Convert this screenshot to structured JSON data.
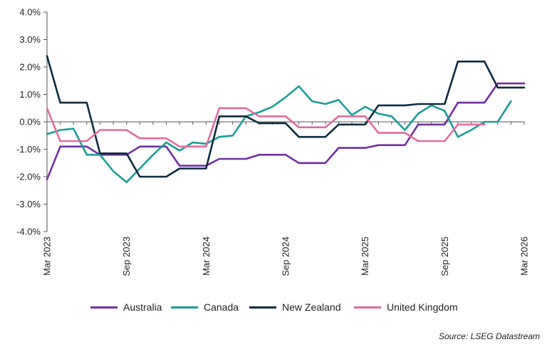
{
  "chart_data": {
    "type": "line",
    "y_ticks": [
      "4.0%",
      "3.0%",
      "2.0%",
      "1.0%",
      "0.0%",
      "-1.0%",
      "-2.0%",
      "-3.0%",
      "-4.0%"
    ],
    "x_ticks": [
      "Mar 2023",
      "Sep 2023",
      "Mar 2024",
      "Sep 2024",
      "Mar 2025",
      "Sep 2025",
      "Mar 2026"
    ],
    "ylim": [
      -4.0,
      4.0
    ],
    "xlim_months": [
      "2023-03",
      "2026-03"
    ],
    "grid": false,
    "legend_position": "bottom",
    "series": [
      {
        "name": "Australia",
        "color": "#7030A0",
        "x": [
          "2023-03",
          "2023-04",
          "2023-05",
          "2023-06",
          "2023-07",
          "2023-08",
          "2023-09",
          "2023-10",
          "2023-11",
          "2023-12",
          "2024-01",
          "2024-02",
          "2024-03",
          "2024-04",
          "2024-05",
          "2024-06",
          "2024-07",
          "2024-08",
          "2024-09",
          "2024-10",
          "2024-11",
          "2024-12",
          "2025-01",
          "2025-02",
          "2025-03",
          "2025-04",
          "2025-05",
          "2025-06",
          "2025-07",
          "2025-08",
          "2025-09",
          "2025-10",
          "2025-11",
          "2025-12",
          "2026-01",
          "2026-02",
          "2026-03"
        ],
        "values": [
          -2.1,
          -0.9,
          -0.9,
          -0.9,
          -1.2,
          -1.2,
          -1.2,
          -0.9,
          -0.9,
          -0.9,
          -1.6,
          -1.6,
          -1.6,
          -1.35,
          -1.35,
          -1.35,
          -1.2,
          -1.2,
          -1.2,
          -1.5,
          -1.5,
          -1.5,
          -0.95,
          -0.95,
          -0.95,
          -0.85,
          -0.85,
          -0.85,
          -0.1,
          -0.1,
          -0.1,
          0.7,
          0.7,
          0.7,
          1.4,
          1.4,
          1.4
        ]
      },
      {
        "name": "Canada",
        "color": "#1A9E96",
        "x": [
          "2023-03",
          "2023-04",
          "2023-05",
          "2023-06",
          "2023-07",
          "2023-08",
          "2023-09",
          "2023-10",
          "2023-11",
          "2023-12",
          "2024-01",
          "2024-02",
          "2024-03",
          "2024-04",
          "2024-05",
          "2024-06",
          "2024-07",
          "2024-08",
          "2024-09",
          "2024-10",
          "2024-11",
          "2024-12",
          "2025-01",
          "2025-02",
          "2025-03",
          "2025-04",
          "2025-05",
          "2025-06",
          "2025-07",
          "2025-08",
          "2025-09",
          "2025-10",
          "2025-11",
          "2025-12",
          "2026-01",
          "2026-02"
        ],
        "values": [
          -0.45,
          -0.3,
          -0.25,
          -1.2,
          -1.2,
          -1.8,
          -2.2,
          -1.7,
          -1.2,
          -0.75,
          -1.05,
          -0.75,
          -0.8,
          -0.55,
          -0.5,
          0.2,
          0.35,
          0.55,
          0.9,
          1.3,
          0.75,
          0.65,
          0.8,
          0.25,
          0.55,
          0.3,
          0.2,
          -0.3,
          0.3,
          0.6,
          0.4,
          -0.55,
          -0.3,
          0.0,
          0.0,
          0.75
        ]
      },
      {
        "name": "New Zealand",
        "color": "#0F2B3D",
        "x": [
          "2023-03",
          "2023-04",
          "2023-05",
          "2023-06",
          "2023-07",
          "2023-08",
          "2023-09",
          "2023-10",
          "2023-11",
          "2023-12",
          "2024-01",
          "2024-02",
          "2024-03",
          "2024-04",
          "2024-05",
          "2024-06",
          "2024-07",
          "2024-08",
          "2024-09",
          "2024-10",
          "2024-11",
          "2024-12",
          "2025-01",
          "2025-02",
          "2025-03",
          "2025-04",
          "2025-05",
          "2025-06",
          "2025-07",
          "2025-08",
          "2025-09",
          "2025-10",
          "2025-11",
          "2025-12",
          "2026-01",
          "2026-02",
          "2026-03"
        ],
        "values": [
          2.4,
          0.7,
          0.7,
          0.7,
          -1.15,
          -1.15,
          -1.15,
          -2.0,
          -2.0,
          -2.0,
          -1.7,
          -1.7,
          -1.7,
          0.2,
          0.2,
          0.2,
          -0.05,
          -0.05,
          -0.05,
          -0.55,
          -0.55,
          -0.55,
          -0.1,
          -0.1,
          -0.1,
          0.6,
          0.6,
          0.6,
          0.65,
          0.65,
          0.65,
          2.2,
          2.2,
          2.2,
          1.25,
          1.25,
          1.25
        ]
      },
      {
        "name": "United Kingdom",
        "color": "#E06C9F",
        "x": [
          "2023-03",
          "2023-04",
          "2023-05",
          "2023-06",
          "2023-07",
          "2023-08",
          "2023-09",
          "2023-10",
          "2023-11",
          "2023-12",
          "2024-01",
          "2024-02",
          "2024-03",
          "2024-04",
          "2024-05",
          "2024-06",
          "2024-07",
          "2024-08",
          "2024-09",
          "2024-10",
          "2024-11",
          "2024-12",
          "2025-01",
          "2025-02",
          "2025-03",
          "2025-04",
          "2025-05",
          "2025-06",
          "2025-07",
          "2025-08",
          "2025-09",
          "2025-10",
          "2025-11",
          "2025-12"
        ],
        "values": [
          0.5,
          -0.7,
          -0.7,
          -0.7,
          -0.3,
          -0.3,
          -0.3,
          -0.6,
          -0.6,
          -0.6,
          -0.9,
          -0.9,
          -0.9,
          0.5,
          0.5,
          0.5,
          0.2,
          0.2,
          0.2,
          -0.2,
          -0.2,
          -0.2,
          0.2,
          0.2,
          0.2,
          -0.4,
          -0.4,
          -0.4,
          -0.7,
          -0.7,
          -0.7,
          -0.1,
          -0.1,
          -0.1
        ]
      }
    ]
  },
  "source": "Source: LSEG Datastream"
}
